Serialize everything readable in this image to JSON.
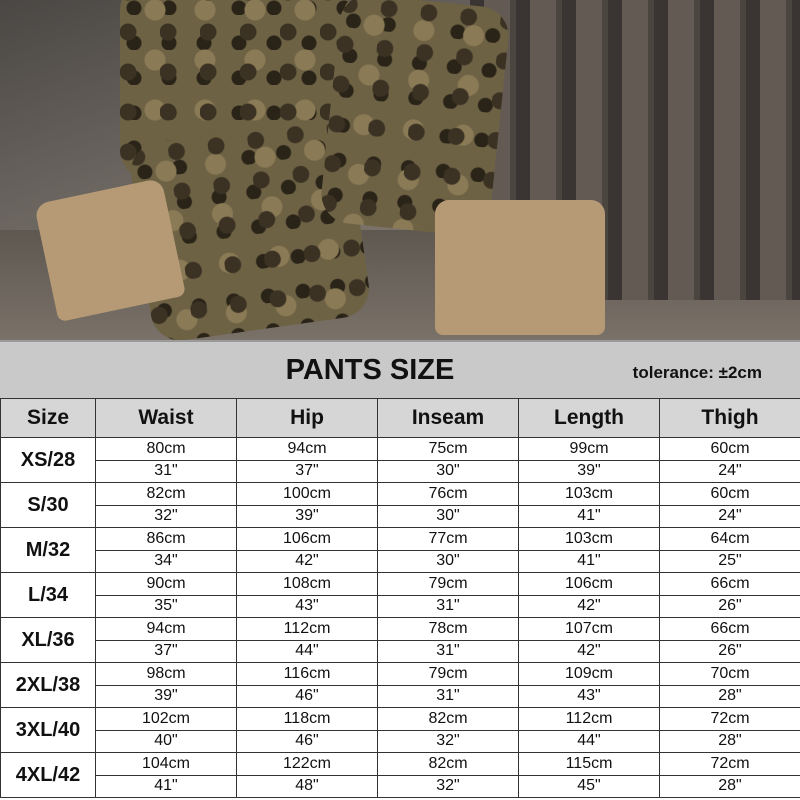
{
  "title": "PANTS SIZE",
  "tolerance": "tolerance: ±2cm",
  "headers": [
    "Size",
    "Waist",
    "Hip",
    "Inseam",
    "Length",
    "Thigh"
  ],
  "rows": [
    {
      "size": "XS/28",
      "cm": [
        "80cm",
        "94cm",
        "75cm",
        "99cm",
        "60cm"
      ],
      "in": [
        "31\"",
        "37\"",
        "30\"",
        "39\"",
        "24\""
      ]
    },
    {
      "size": "S/30",
      "cm": [
        "82cm",
        "100cm",
        "76cm",
        "103cm",
        "60cm"
      ],
      "in": [
        "32\"",
        "39\"",
        "30\"",
        "41\"",
        "24\""
      ]
    },
    {
      "size": "M/32",
      "cm": [
        "86cm",
        "106cm",
        "77cm",
        "103cm",
        "64cm"
      ],
      "in": [
        "34\"",
        "42\"",
        "30\"",
        "41\"",
        "25\""
      ]
    },
    {
      "size": "L/34",
      "cm": [
        "90cm",
        "108cm",
        "79cm",
        "106cm",
        "66cm"
      ],
      "in": [
        "35\"",
        "43\"",
        "31\"",
        "42\"",
        "26\""
      ]
    },
    {
      "size": "XL/36",
      "cm": [
        "94cm",
        "112cm",
        "78cm",
        "107cm",
        "66cm"
      ],
      "in": [
        "37\"",
        "44\"",
        "31\"",
        "42\"",
        "26\""
      ]
    },
    {
      "size": "2XL/38",
      "cm": [
        "98cm",
        "116cm",
        "79cm",
        "109cm",
        "70cm"
      ],
      "in": [
        "39\"",
        "46\"",
        "31\"",
        "43\"",
        "28\""
      ]
    },
    {
      "size": "3XL/40",
      "cm": [
        "102cm",
        "118cm",
        "82cm",
        "112cm",
        "72cm"
      ],
      "in": [
        "40\"",
        "46\"",
        "32\"",
        "44\"",
        "28\""
      ]
    },
    {
      "size": "4XL/42",
      "cm": [
        "104cm",
        "122cm",
        "82cm",
        "115cm",
        "72cm"
      ],
      "in": [
        "41\"",
        "48\"",
        "32\"",
        "45\"",
        "28\""
      ]
    }
  ]
}
